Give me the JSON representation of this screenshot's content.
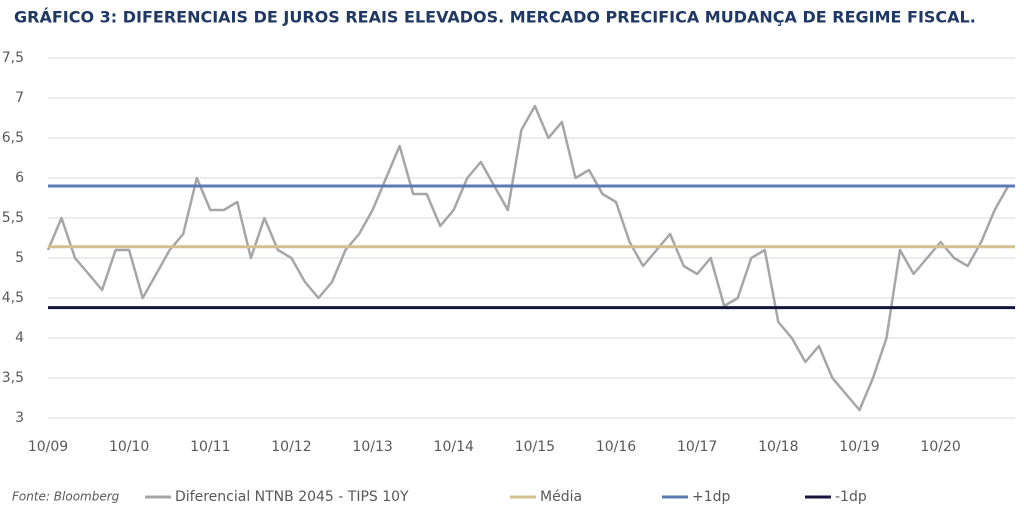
{
  "chart_data": {
    "type": "line",
    "title": "GRÁFICO 3: DIFERENCIAIS DE JUROS REAIS ELEVADOS. MERCADO PRECIFICA MUDANÇA DE REGIME FISCAL.",
    "source": "Fonte: Bloomberg",
    "categories": [
      "10/09",
      null,
      null,
      null,
      null,
      null,
      "10/10",
      null,
      null,
      null,
      null,
      null,
      "10/11",
      null,
      null,
      null,
      null,
      null,
      "10/12",
      null,
      null,
      null,
      null,
      null,
      "10/13",
      null,
      null,
      null,
      null,
      null,
      "10/14",
      null,
      null,
      null,
      null,
      null,
      "10/15",
      null,
      null,
      null,
      null,
      null,
      "10/16",
      null,
      null,
      null,
      null,
      null,
      "10/17",
      null,
      null,
      null,
      null,
      null,
      "10/18",
      null,
      null,
      null,
      null,
      null,
      "10/19",
      null,
      null,
      null,
      null,
      null,
      "10/20",
      null,
      null,
      null,
      null,
      null
    ],
    "series": [
      {
        "name": "Diferencial NTNB 2045 - TIPS 10Y",
        "color": "#a6a6a6",
        "values": [
          5.1,
          5.5,
          5.0,
          4.8,
          4.6,
          5.1,
          5.1,
          4.5,
          4.8,
          5.1,
          5.3,
          6.0,
          5.6,
          5.6,
          5.7,
          5.0,
          5.5,
          5.1,
          5.0,
          4.7,
          4.5,
          4.7,
          5.1,
          5.3,
          5.6,
          6.0,
          6.4,
          5.8,
          5.8,
          5.4,
          5.6,
          6.0,
          6.2,
          5.9,
          5.6,
          6.6,
          6.9,
          6.5,
          6.7,
          6.0,
          6.1,
          5.8,
          5.7,
          5.2,
          4.9,
          5.1,
          5.3,
          4.9,
          4.8,
          5.0,
          4.4,
          4.5,
          5.0,
          5.1,
          4.2,
          4.0,
          3.7,
          3.9,
          3.5,
          3.3,
          3.1,
          3.5,
          4.0,
          5.1,
          4.8,
          5.0,
          5.2,
          5.0,
          4.9,
          5.2,
          5.6,
          5.9
        ]
      }
    ],
    "reference_lines": [
      {
        "name": "Média",
        "color": "#d4c08e",
        "value": 5.14
      },
      {
        "name": "+1dp",
        "color": "#5b7bb4",
        "value": 5.9
      },
      {
        "name": "-1dp",
        "color": "#14143c",
        "value": 4.38
      }
    ],
    "ylim": [
      2.9,
      7.5
    ],
    "yticks": [
      3,
      {
        "value": 3.5,
        "label": "3,5"
      },
      4,
      {
        "value": 4.5,
        "label": "4,5"
      },
      5,
      {
        "value": 5.5,
        "label": "5,5"
      },
      6,
      {
        "value": 6.5,
        "label": "6,5"
      },
      7,
      {
        "value": 7.5,
        "label": "7,5"
      }
    ],
    "grid": true
  }
}
